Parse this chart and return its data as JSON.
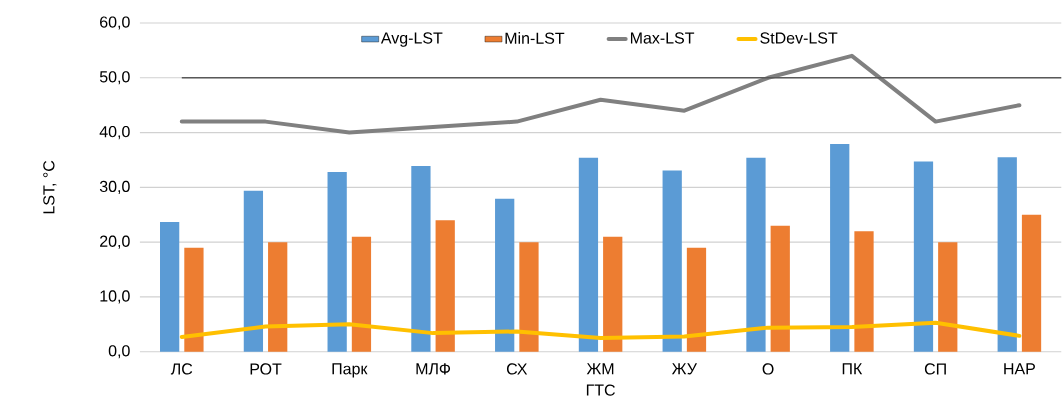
{
  "chart_data": {
    "type": "bar",
    "xlabel": "ГТС",
    "ylabel": "LST, °C",
    "categories": [
      "ЛС",
      "РОТ",
      "Парк",
      "МЛФ",
      "СХ",
      "ЖМ",
      "ЖУ",
      "О",
      "ПК",
      "СП",
      "НАР"
    ],
    "series": [
      {
        "name": "Avg-LST",
        "color": "#5b9bd5",
        "values": [
          23.7,
          29.4,
          32.8,
          33.9,
          27.9,
          35.4,
          33.1,
          35.4,
          37.9,
          34.7,
          35.5
        ]
      },
      {
        "name": "Min-LST",
        "color": "#ed7d31",
        "values": [
          19,
          20,
          21,
          24,
          20,
          21,
          19,
          23,
          22,
          20,
          25
        ]
      },
      {
        "name": "Max-LST",
        "type": "line",
        "color": "#808080",
        "values": [
          42,
          42,
          40,
          41,
          42,
          46,
          44,
          50,
          54,
          42,
          45
        ]
      },
      {
        "name": "StDev-LST",
        "type": "line",
        "color": "#ffc000",
        "values": [
          2.7,
          4.6,
          5.0,
          3.4,
          3.7,
          2.5,
          2.8,
          4.4,
          4.5,
          5.3,
          2.9
        ]
      }
    ],
    "ylim": [
      0,
      60
    ],
    "yticks": [
      {
        "value": 0,
        "label": "0,0"
      },
      {
        "value": 10,
        "label": "10,0"
      },
      {
        "value": 20,
        "label": "20,0"
      },
      {
        "value": 30,
        "label": "30,0"
      },
      {
        "value": 40,
        "label": "40,0"
      },
      {
        "value": 50,
        "label": "50,0"
      },
      {
        "value": 60,
        "label": "60,0"
      }
    ],
    "ref_lines": [
      {
        "axis": "y",
        "value": 50,
        "color": "#595959"
      }
    ],
    "grid": "y",
    "legend": "top",
    "marker": "none",
    "line_style": "solid"
  }
}
